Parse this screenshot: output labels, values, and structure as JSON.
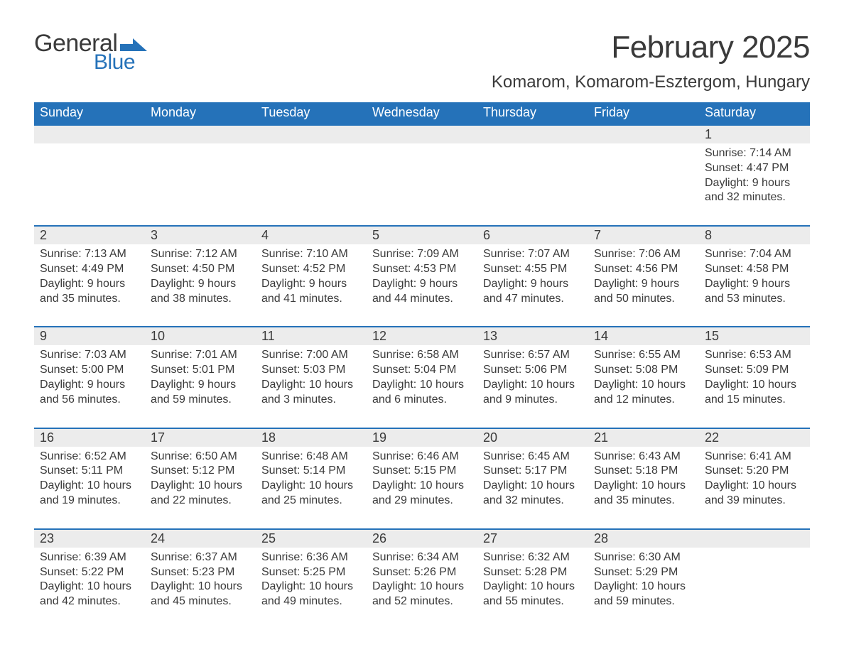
{
  "brand": {
    "part1": "General",
    "part2": "Blue",
    "logo_color": "#2572b9"
  },
  "title": "February 2025",
  "location": "Komarom, Komarom-Esztergom, Hungary",
  "colors": {
    "header_bg": "#2572b9",
    "header_text": "#ffffff",
    "daynum_bg": "#ececec",
    "row_border": "#2572b9",
    "text": "#3a3a3a",
    "page_bg": "#ffffff"
  },
  "day_headers": [
    "Sunday",
    "Monday",
    "Tuesday",
    "Wednesday",
    "Thursday",
    "Friday",
    "Saturday"
  ],
  "weeks": [
    {
      "days": [
        null,
        null,
        null,
        null,
        null,
        null,
        {
          "n": "1",
          "sunrise": "7:14 AM",
          "sunset": "4:47 PM",
          "daylight": "9 hours and 32 minutes."
        }
      ]
    },
    {
      "days": [
        {
          "n": "2",
          "sunrise": "7:13 AM",
          "sunset": "4:49 PM",
          "daylight": "9 hours and 35 minutes."
        },
        {
          "n": "3",
          "sunrise": "7:12 AM",
          "sunset": "4:50 PM",
          "daylight": "9 hours and 38 minutes."
        },
        {
          "n": "4",
          "sunrise": "7:10 AM",
          "sunset": "4:52 PM",
          "daylight": "9 hours and 41 minutes."
        },
        {
          "n": "5",
          "sunrise": "7:09 AM",
          "sunset": "4:53 PM",
          "daylight": "9 hours and 44 minutes."
        },
        {
          "n": "6",
          "sunrise": "7:07 AM",
          "sunset": "4:55 PM",
          "daylight": "9 hours and 47 minutes."
        },
        {
          "n": "7",
          "sunrise": "7:06 AM",
          "sunset": "4:56 PM",
          "daylight": "9 hours and 50 minutes."
        },
        {
          "n": "8",
          "sunrise": "7:04 AM",
          "sunset": "4:58 PM",
          "daylight": "9 hours and 53 minutes."
        }
      ]
    },
    {
      "days": [
        {
          "n": "9",
          "sunrise": "7:03 AM",
          "sunset": "5:00 PM",
          "daylight": "9 hours and 56 minutes."
        },
        {
          "n": "10",
          "sunrise": "7:01 AM",
          "sunset": "5:01 PM",
          "daylight": "9 hours and 59 minutes."
        },
        {
          "n": "11",
          "sunrise": "7:00 AM",
          "sunset": "5:03 PM",
          "daylight": "10 hours and 3 minutes."
        },
        {
          "n": "12",
          "sunrise": "6:58 AM",
          "sunset": "5:04 PM",
          "daylight": "10 hours and 6 minutes."
        },
        {
          "n": "13",
          "sunrise": "6:57 AM",
          "sunset": "5:06 PM",
          "daylight": "10 hours and 9 minutes."
        },
        {
          "n": "14",
          "sunrise": "6:55 AM",
          "sunset": "5:08 PM",
          "daylight": "10 hours and 12 minutes."
        },
        {
          "n": "15",
          "sunrise": "6:53 AM",
          "sunset": "5:09 PM",
          "daylight": "10 hours and 15 minutes."
        }
      ]
    },
    {
      "days": [
        {
          "n": "16",
          "sunrise": "6:52 AM",
          "sunset": "5:11 PM",
          "daylight": "10 hours and 19 minutes."
        },
        {
          "n": "17",
          "sunrise": "6:50 AM",
          "sunset": "5:12 PM",
          "daylight": "10 hours and 22 minutes."
        },
        {
          "n": "18",
          "sunrise": "6:48 AM",
          "sunset": "5:14 PM",
          "daylight": "10 hours and 25 minutes."
        },
        {
          "n": "19",
          "sunrise": "6:46 AM",
          "sunset": "5:15 PM",
          "daylight": "10 hours and 29 minutes."
        },
        {
          "n": "20",
          "sunrise": "6:45 AM",
          "sunset": "5:17 PM",
          "daylight": "10 hours and 32 minutes."
        },
        {
          "n": "21",
          "sunrise": "6:43 AM",
          "sunset": "5:18 PM",
          "daylight": "10 hours and 35 minutes."
        },
        {
          "n": "22",
          "sunrise": "6:41 AM",
          "sunset": "5:20 PM",
          "daylight": "10 hours and 39 minutes."
        }
      ]
    },
    {
      "days": [
        {
          "n": "23",
          "sunrise": "6:39 AM",
          "sunset": "5:22 PM",
          "daylight": "10 hours and 42 minutes."
        },
        {
          "n": "24",
          "sunrise": "6:37 AM",
          "sunset": "5:23 PM",
          "daylight": "10 hours and 45 minutes."
        },
        {
          "n": "25",
          "sunrise": "6:36 AM",
          "sunset": "5:25 PM",
          "daylight": "10 hours and 49 minutes."
        },
        {
          "n": "26",
          "sunrise": "6:34 AM",
          "sunset": "5:26 PM",
          "daylight": "10 hours and 52 minutes."
        },
        {
          "n": "27",
          "sunrise": "6:32 AM",
          "sunset": "5:28 PM",
          "daylight": "10 hours and 55 minutes."
        },
        {
          "n": "28",
          "sunrise": "6:30 AM",
          "sunset": "5:29 PM",
          "daylight": "10 hours and 59 minutes."
        },
        null
      ]
    }
  ],
  "labels": {
    "sunrise": "Sunrise: ",
    "sunset": "Sunset: ",
    "daylight": "Daylight: "
  }
}
